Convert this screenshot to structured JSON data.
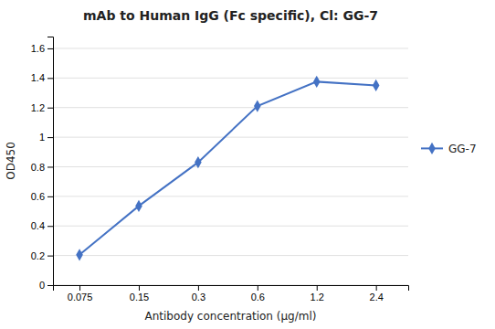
{
  "chart_data": {
    "type": "line",
    "title": "mAb to Human IgG (Fc specific), Cl: GG-7",
    "xlabel": "Antibody concentration (μg/ml)",
    "ylabel": "OD450",
    "x": [
      0.075,
      0.15,
      0.3,
      0.6,
      1.2,
      2.4
    ],
    "series": [
      {
        "name": "GG-7",
        "color": "#4472C4",
        "marker": "diamond",
        "values": [
          0.205,
          0.535,
          0.83,
          1.21,
          1.375,
          1.35
        ]
      }
    ],
    "log": "x",
    "xlim": [
      0.055,
      3.5
    ],
    "xticks": [
      0.075,
      0.15,
      0.3,
      0.6,
      1.2,
      2.4
    ],
    "ylim": [
      0,
      1.68
    ],
    "yticks": [
      0,
      0.2,
      0.4,
      0.6,
      0.8,
      1,
      1.2,
      1.4,
      1.6
    ],
    "grid": "y",
    "legend": "right"
  }
}
